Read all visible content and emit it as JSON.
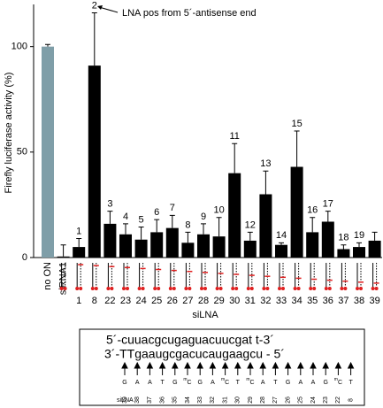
{
  "chart_data": {
    "type": "bar",
    "y_label": "Firefly luciferase activity (%)",
    "x_label": "siLNA",
    "annotation": "LNA pos from 5´-antisense end",
    "categories": [
      "no ON",
      "siRNA1",
      "1",
      "8",
      "22",
      "23",
      "24",
      "25",
      "26",
      "27",
      "28",
      "29",
      "30",
      "31",
      "32",
      "33",
      "34",
      "35",
      "36",
      "37",
      "38",
      "39"
    ],
    "values": [
      100,
      0.5,
      5,
      91,
      16,
      11,
      8.5,
      12,
      14,
      7,
      11,
      10,
      40,
      8,
      30,
      6,
      43,
      12,
      17,
      4,
      5,
      8
    ],
    "errors": [
      1,
      5.5,
      4,
      25,
      6,
      5,
      6,
      6,
      6,
      5,
      5,
      9,
      14,
      4,
      11,
      1,
      17,
      7,
      5,
      2,
      2,
      4
    ],
    "bar_labels": [
      null,
      null,
      1,
      2,
      3,
      4,
      5,
      6,
      7,
      8,
      9,
      10,
      11,
      12,
      13,
      14,
      15,
      16,
      17,
      18,
      19,
      null
    ],
    "colors": [
      "#7f9ea8",
      "#000000"
    ],
    "ylim": [
      0,
      120
    ],
    "yticks": [
      0,
      50,
      100
    ]
  },
  "sequence_box": {
    "sense": "5´-cuuacgcugaguacuucgat t-3´",
    "antisense": "3´-TTgaaugcgacucaugaagcu - 5´",
    "lna_bases": [
      "G",
      "A",
      "A",
      "T",
      "G",
      "mC",
      "G",
      "A",
      "mC",
      "T",
      "mC",
      "A",
      "T",
      "G",
      "A",
      "A",
      "G",
      "mC",
      "T"
    ],
    "positions": [
      "39",
      "38",
      "37",
      "36",
      "35",
      "34",
      "33",
      "32",
      "31",
      "30",
      "29",
      "28",
      "27",
      "26",
      "25",
      "24",
      "23",
      "22",
      "8"
    ],
    "row_label": "siLNA"
  }
}
